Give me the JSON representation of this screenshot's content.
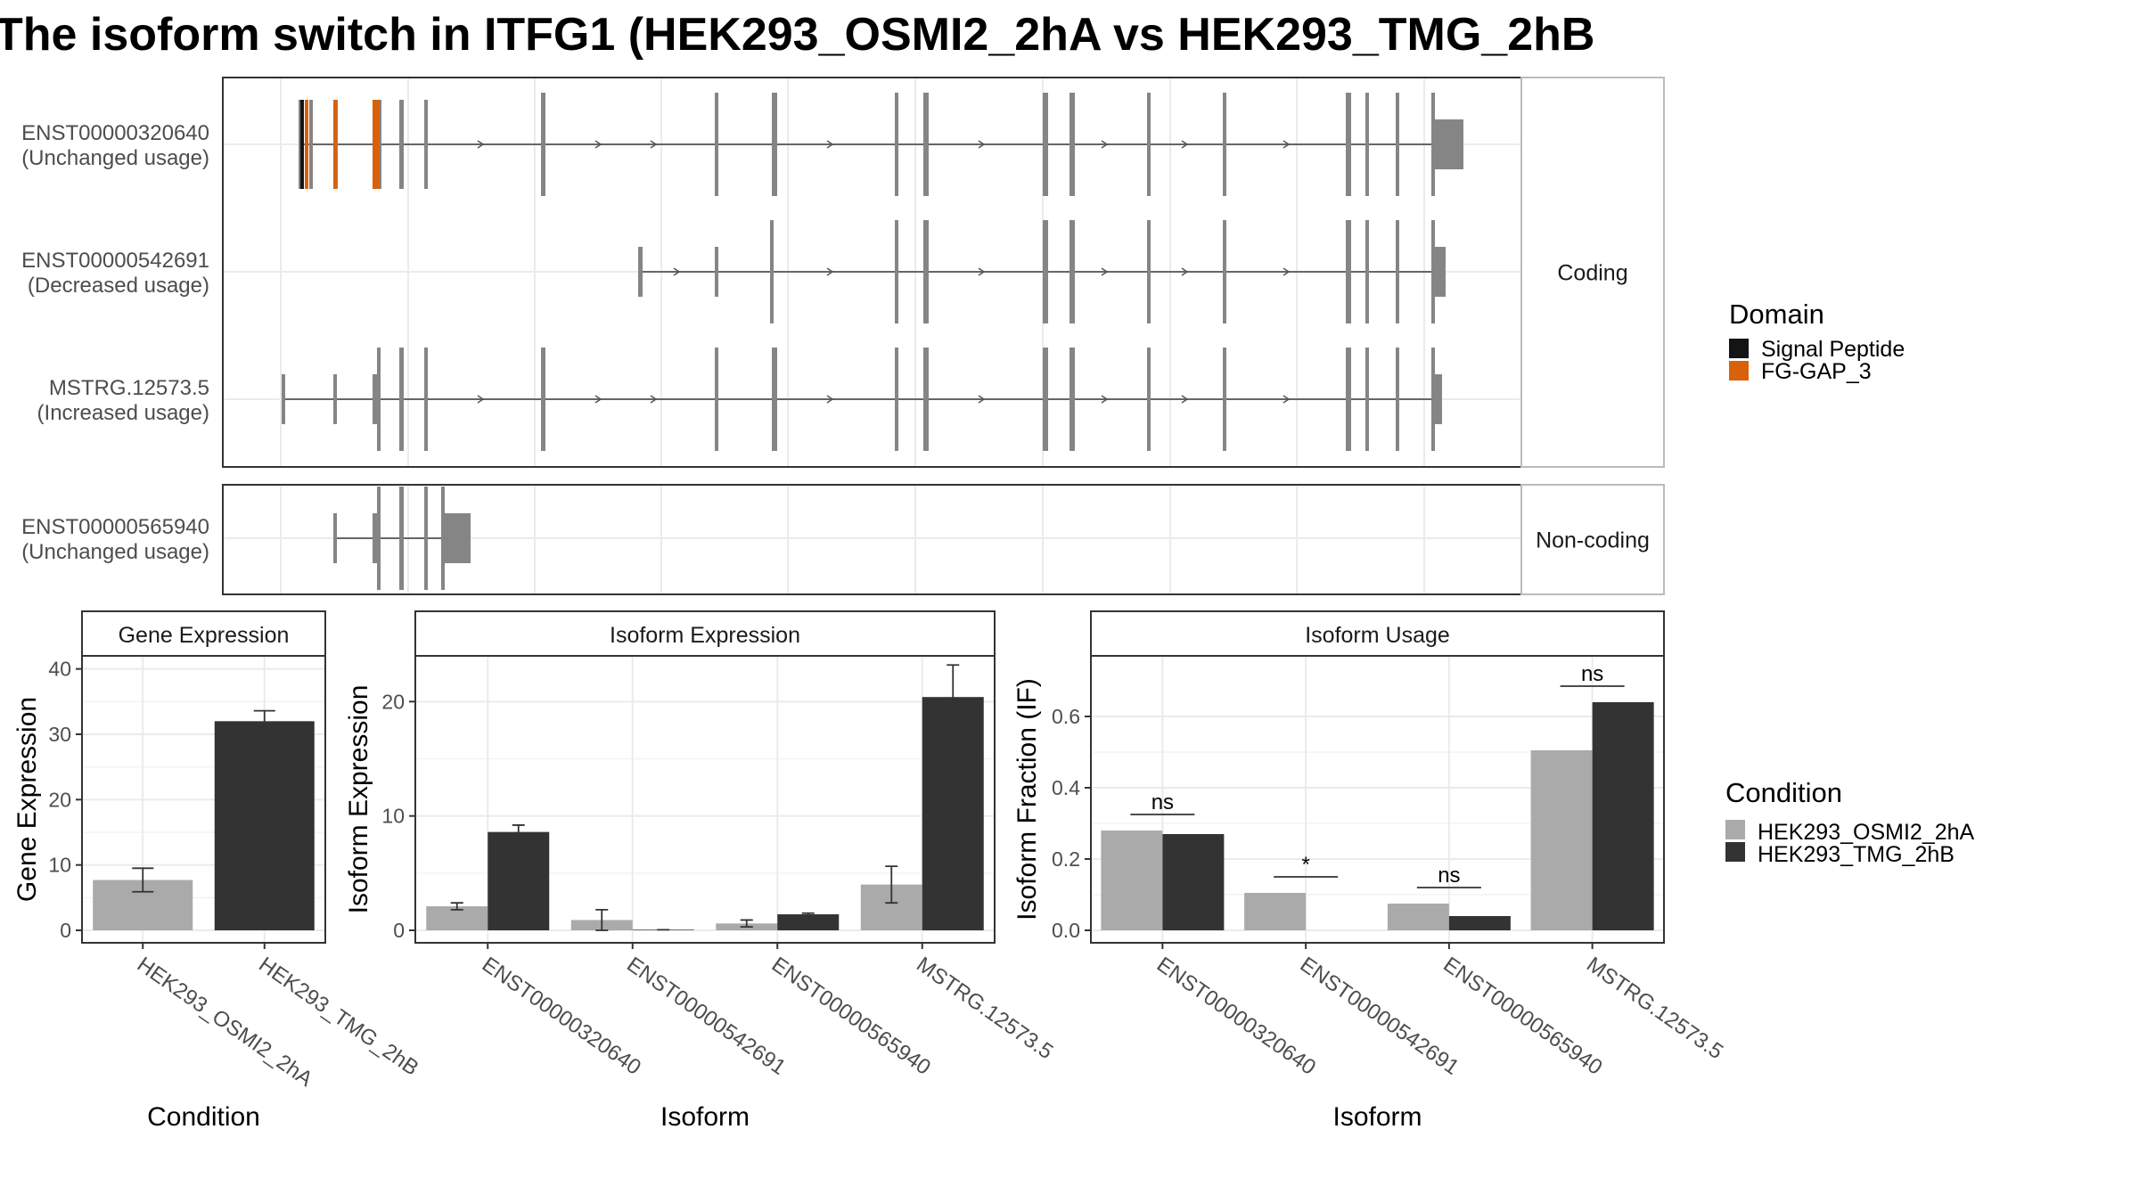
{
  "title": "The isoform switch in ITFG1 (HEK293_OSMI2_2hA vs HEK293_TMG_2hB",
  "colors": {
    "exon": "#858585",
    "signal_peptide": "#141414",
    "fg_gap": "#d9610a",
    "cond_a": "#aaaaaa",
    "cond_b": "#333333",
    "grid": "#ebebeb",
    "panel_border": "#333333",
    "strip_border": "#bbbbbb"
  },
  "structure": {
    "facets": [
      "Coding",
      "Non-coding"
    ],
    "isoforms": [
      {
        "id": "ENST00000320640",
        "status": "(Unchanged usage)",
        "facet": "Coding"
      },
      {
        "id": "ENST00000542691",
        "status": "(Decreased usage)",
        "facet": "Coding"
      },
      {
        "id": "MSTRG.12573.5",
        "status": "(Increased usage)",
        "facet": "Coding"
      },
      {
        "id": "ENST00000565940",
        "status": "(Unchanged usage)",
        "facet": "Non-coding"
      }
    ],
    "domain_legend": {
      "title": "Domain",
      "items": [
        "Signal Peptide",
        "FG-GAP_3"
      ]
    }
  },
  "condition_legend": {
    "title": "Condition",
    "items": [
      "HEK293_OSMI2_2hA",
      "HEK293_TMG_2hB"
    ]
  },
  "chart_data": [
    {
      "type": "bar",
      "title": "Gene Expression",
      "xlabel": "Condition",
      "ylabel": "Gene Expression",
      "ylim": [
        0,
        42
      ],
      "yticks": [
        0,
        10,
        20,
        30,
        40
      ],
      "categories": [
        "HEK293_OSMI2_2hA",
        "HEK293_TMG_2hB"
      ],
      "values": [
        7.7,
        32.0
      ],
      "errors": [
        1.8,
        1.6
      ]
    },
    {
      "type": "bar",
      "title": "Isoform Expression",
      "xlabel": "Isoform",
      "ylabel": "Isoform Expression",
      "ylim": [
        0,
        24
      ],
      "yticks": [
        0,
        10,
        20
      ],
      "categories": [
        "ENST00000320640",
        "ENST00000542691",
        "ENST00000565940",
        "MSTRG.12573.5"
      ],
      "series": [
        {
          "name": "HEK293_OSMI2_2hA",
          "values": [
            2.1,
            0.9,
            0.6,
            4.0
          ],
          "errors": [
            0.3,
            0.9,
            0.3,
            1.6
          ]
        },
        {
          "name": "HEK293_TMG_2hB",
          "values": [
            8.6,
            0.05,
            1.4,
            20.4
          ],
          "errors": [
            0.6,
            0.0,
            0.1,
            2.8
          ]
        }
      ]
    },
    {
      "type": "bar",
      "title": "Isoform Usage",
      "xlabel": "Isoform",
      "ylabel": "Isoform Fraction (IF)",
      "ylim": [
        0,
        0.77
      ],
      "yticks": [
        "0.0",
        "0.2",
        "0.4",
        "0.6"
      ],
      "categories": [
        "ENST00000320640",
        "ENST00000542691",
        "ENST00000565940",
        "MSTRG.12573.5"
      ],
      "series": [
        {
          "name": "HEK293_OSMI2_2hA",
          "values": [
            0.28,
            0.105,
            0.075,
            0.505
          ]
        },
        {
          "name": "HEK293_TMG_2hB",
          "values": [
            0.27,
            0.0,
            0.04,
            0.64
          ]
        }
      ],
      "significance": [
        "ns",
        "*",
        "ns",
        "ns"
      ]
    }
  ]
}
